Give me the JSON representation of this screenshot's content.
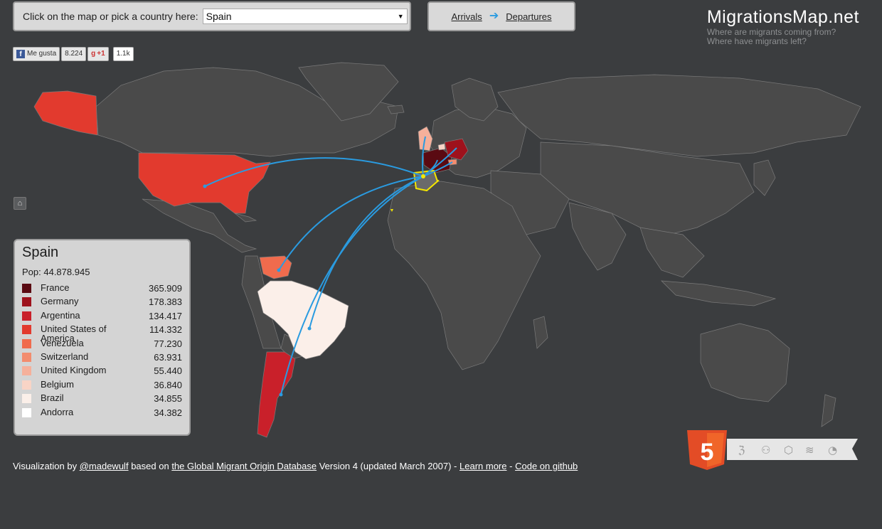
{
  "picker": {
    "label": "Click on the map or pick a country here:",
    "selected": "Spain"
  },
  "direction": {
    "arrivals": "Arrivals",
    "departures": "Departures",
    "active": "departures"
  },
  "brand": {
    "title": "MigrationsMap.net",
    "subtitle1": "Where are migrants coming from?",
    "subtitle2": "Where have migrants left?"
  },
  "social": {
    "like_label": "Me gusta",
    "like_count": "8.224",
    "plus_label": "+1",
    "plus_count": "1.1k"
  },
  "legend": {
    "country": "Spain",
    "population": "Pop: 44.878.945",
    "rows": [
      {
        "name": "France",
        "value": "365.909",
        "color": "#5a0a12"
      },
      {
        "name": "Germany",
        "value": "178.383",
        "color": "#9e121c"
      },
      {
        "name": "Argentina",
        "value": "134.417",
        "color": "#c9202a"
      },
      {
        "name": "United States of America",
        "value": "114.332",
        "color": "#e23a2e"
      },
      {
        "name": "Venezuela",
        "value": "77.230",
        "color": "#f06b4d"
      },
      {
        "name": "Switzerland",
        "value": "63.931",
        "color": "#f38c6e"
      },
      {
        "name": "United Kingdom",
        "value": "55.440",
        "color": "#f5b09b"
      },
      {
        "name": "Belgium",
        "value": "36.840",
        "color": "#f8d4c6"
      },
      {
        "name": "Brazil",
        "value": "34.855",
        "color": "#fbefe9"
      },
      {
        "name": "Andorra",
        "value": "34.382",
        "color": "#ffffff"
      }
    ]
  },
  "footer": {
    "prefix": "Visualization by",
    "author": "@madewulf",
    "based_on": "based on",
    "database": "the Global Migrant Origin Database",
    "version": "Version 4 (updated March 2007) -",
    "learn_more": "Learn more",
    "separator": "-",
    "github": "Code on github"
  },
  "colors": {
    "background": "#3b3d3f",
    "land": "#4a4a4a",
    "borders": "#7a7a7a",
    "flow_lines": "#2a9be0",
    "highlight_outline": "#f4e600"
  },
  "icons": [
    "home-icon",
    "facebook-icon",
    "google-plus-icon",
    "dropdown-caret-icon",
    "arrow-right-icon",
    "html5-logo"
  ]
}
